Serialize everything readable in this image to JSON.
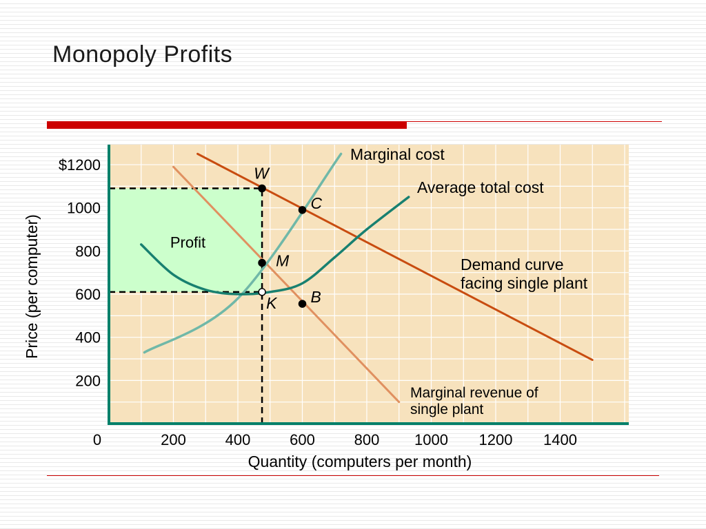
{
  "title": "Monopoly Profits",
  "colors": {
    "accent": "#cc0000",
    "plot_background": "#f7e2bd",
    "plot_grid": "#ffffff",
    "axis": "#00806a",
    "profit_area": "#ccffcc",
    "demand": "#c84c10",
    "marginal_revenue": "#e09060",
    "marginal_cost": "#70b8a8",
    "average_total_cost": "#188070"
  },
  "chart_data": {
    "type": "line",
    "title": "Monopoly Profits",
    "xlabel": "Quantity (computers per month)",
    "ylabel": "Price (per computer)",
    "xlim": [
      0,
      1550
    ],
    "ylim": [
      0,
      1250
    ],
    "x_ticks": [
      "0",
      "200",
      "400",
      "600",
      "800",
      "1000",
      "1200",
      "1400"
    ],
    "x_tick_values": [
      0,
      200,
      400,
      600,
      800,
      1000,
      1200,
      1400
    ],
    "y_ticks": [
      "200",
      "400",
      "600",
      "800",
      "1000",
      "$1200"
    ],
    "y_tick_values": [
      200,
      400,
      600,
      800,
      1000,
      1200
    ],
    "grid": true,
    "series": [
      {
        "name": "Demand curve facing single plant",
        "x": [
          275,
          1500
        ],
        "y": [
          1250,
          295
        ]
      },
      {
        "name": "Marginal revenue of single plant",
        "x": [
          200,
          900
        ],
        "y": [
          1190,
          100
        ]
      },
      {
        "name": "Marginal cost",
        "x": [
          110,
          400,
          720
        ],
        "y": [
          330,
          580,
          1250
        ]
      },
      {
        "name": "Average total cost",
        "x": [
          100,
          200,
          300,
          400,
          500,
          600,
          700,
          800,
          930
        ],
        "y": [
          830,
          690,
          620,
          600,
          610,
          650,
          770,
          900,
          1050
        ]
      }
    ],
    "profit_region": {
      "label": "Profit",
      "x": [
        0,
        475
      ],
      "y": [
        610,
        1090
      ]
    },
    "guide_lines": [
      {
        "x": [
          0,
          475
        ],
        "y": [
          1090,
          1090
        ]
      },
      {
        "x": [
          0,
          475
        ],
        "y": [
          610,
          610
        ]
      },
      {
        "x": [
          475,
          475
        ],
        "y": [
          0,
          1090
        ]
      }
    ],
    "points": [
      {
        "label": "W",
        "x": 475,
        "y": 1090,
        "filled": true
      },
      {
        "label": "C",
        "x": 600,
        "y": 990,
        "filled": true
      },
      {
        "label": "M",
        "x": 475,
        "y": 745,
        "filled": true
      },
      {
        "label": "B",
        "x": 600,
        "y": 555,
        "filled": true
      },
      {
        "label": "K",
        "x": 475,
        "y": 610,
        "filled": false
      }
    ],
    "annotations": [
      {
        "text": "Marginal cost"
      },
      {
        "text": "Average total cost"
      },
      {
        "text": "Demand curve"
      },
      {
        "text": "facing single plant"
      },
      {
        "text": "Marginal revenue of"
      },
      {
        "text": "single plant"
      }
    ]
  }
}
